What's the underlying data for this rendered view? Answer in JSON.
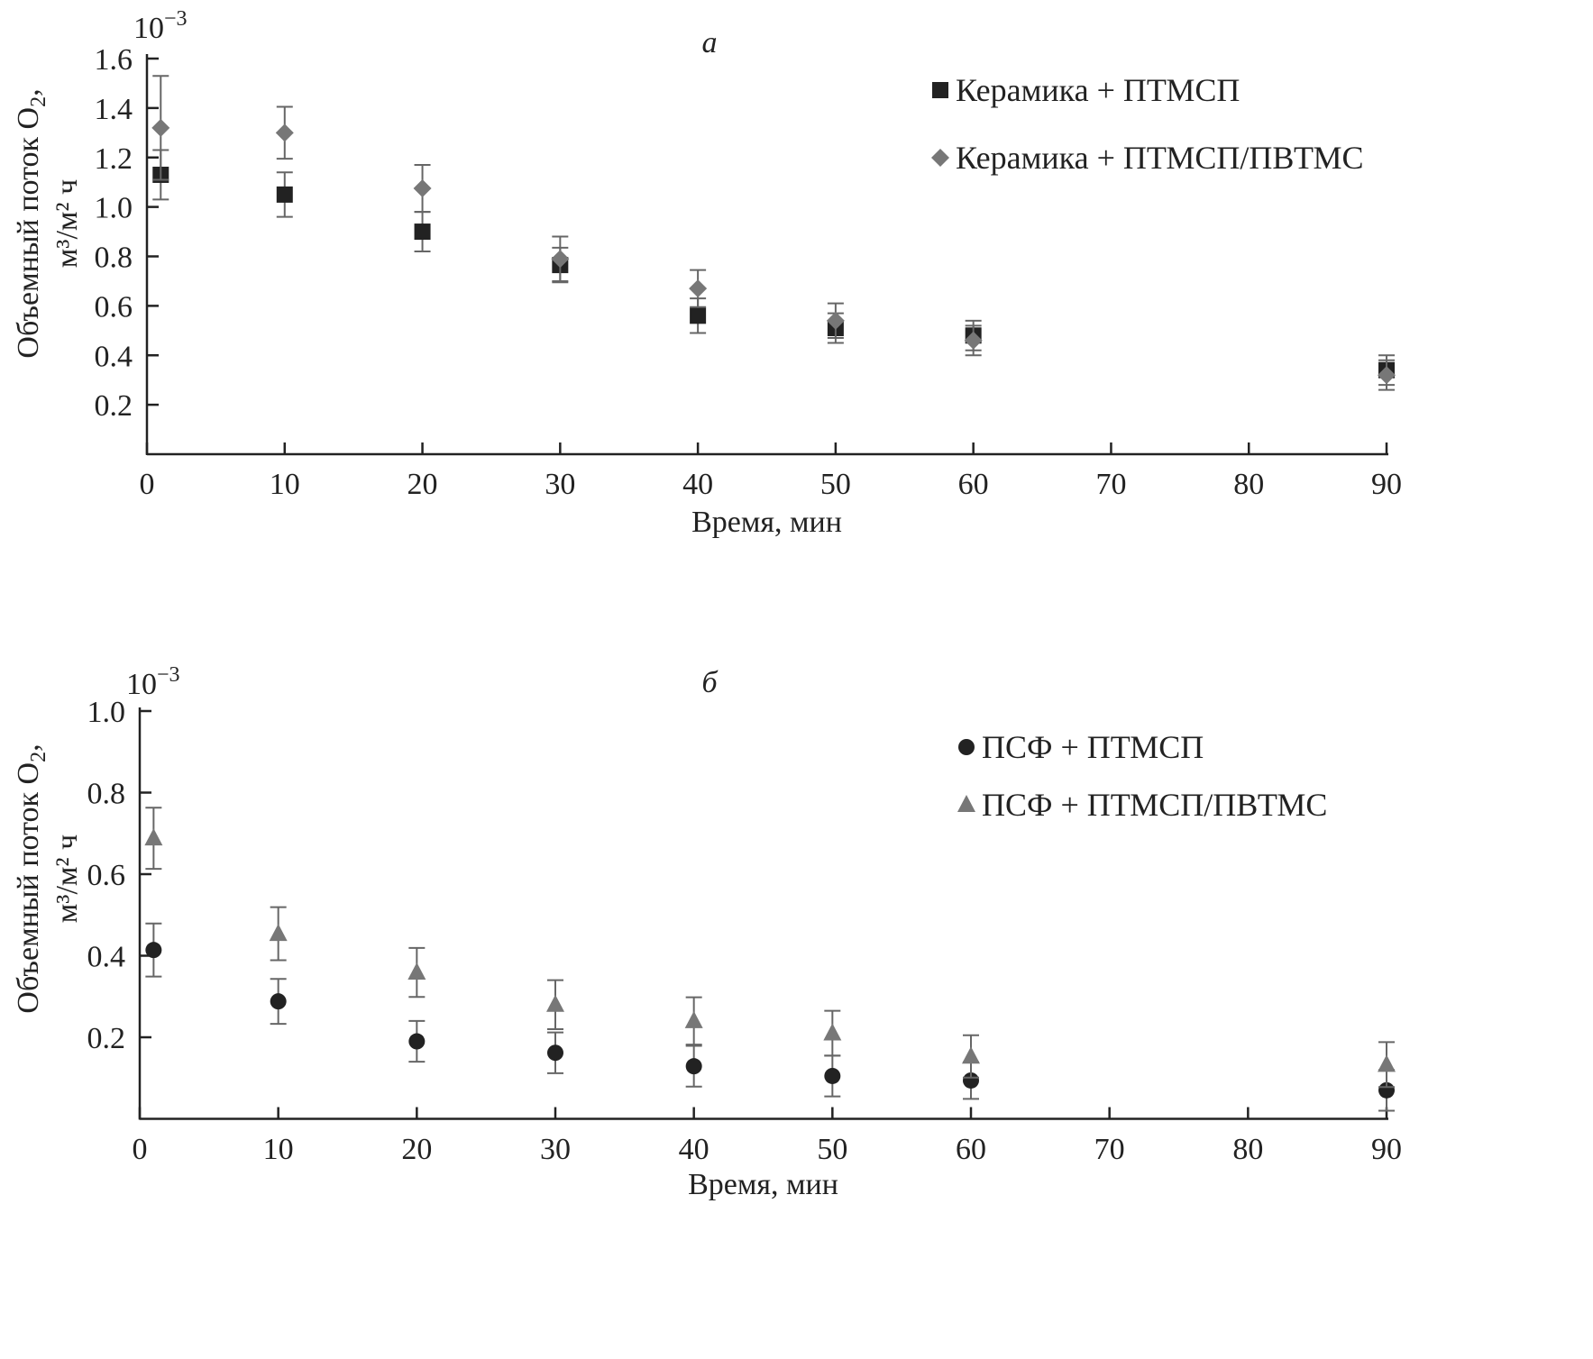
{
  "chart_data": [
    {
      "type": "scatter",
      "panel_label": "а",
      "multiplier": "10",
      "multiplier_exp": "−3",
      "xlabel": "Время, мин",
      "ylabel_line1": "Объемный поток O",
      "ylabel_line1_sub": "2",
      "ylabel_line1_end": ",",
      "ylabel_line2": "м³/м² ч",
      "xlim": [
        0,
        90
      ],
      "ylim": [
        0,
        1.6
      ],
      "xticks": [
        0,
        10,
        20,
        30,
        40,
        50,
        60,
        70,
        80,
        90
      ],
      "yticks": [
        "0.2",
        "0.4",
        "0.6",
        "0.8",
        "1.0",
        "1.2",
        "1.4",
        "1.6"
      ],
      "grid": false,
      "legend_position": "top-right",
      "series": [
        {
          "name": "Керамика + ПТМСП",
          "marker": "square",
          "color": "#222222",
          "x": [
            1,
            10,
            20,
            30,
            40,
            50,
            60,
            90
          ],
          "y": [
            1.13,
            1.05,
            0.9,
            0.765,
            0.56,
            0.51,
            0.48,
            0.34
          ],
          "err": [
            0.1,
            0.09,
            0.08,
            0.07,
            0.07,
            0.06,
            0.06,
            0.06
          ]
        },
        {
          "name": "Керамика + ПТМСП/ПВТМС",
          "marker": "diamond",
          "color": "#777777",
          "x": [
            1,
            10,
            20,
            30,
            40,
            50,
            60,
            90
          ],
          "y": [
            1.32,
            1.3,
            1.075,
            0.79,
            0.67,
            0.54,
            0.46,
            0.32
          ],
          "err": [
            0.21,
            0.105,
            0.095,
            0.09,
            0.075,
            0.07,
            0.06,
            0.06
          ]
        }
      ]
    },
    {
      "type": "scatter",
      "panel_label": "б",
      "multiplier": "10",
      "multiplier_exp": "−3",
      "xlabel": "Время, мин",
      "ylabel_line1": "Объемный поток O",
      "ylabel_line1_sub": "2",
      "ylabel_line1_end": ",",
      "ylabel_line2": "м³/м² ч",
      "xlim": [
        0,
        90
      ],
      "ylim": [
        0,
        1.0
      ],
      "xticks": [
        0,
        10,
        20,
        30,
        40,
        50,
        60,
        70,
        80,
        90
      ],
      "yticks": [
        "0.2",
        "0.4",
        "0.6",
        "0.8",
        "1.0"
      ],
      "grid": false,
      "legend_position": "top-right",
      "series": [
        {
          "name": "ПСФ + ПТМСП",
          "marker": "circle",
          "color": "#222222",
          "x": [
            1,
            10,
            20,
            30,
            40,
            50,
            60,
            90
          ],
          "y": [
            0.414,
            0.288,
            0.19,
            0.162,
            0.129,
            0.105,
            0.094,
            0.07
          ],
          "err": [
            0.065,
            0.055,
            0.05,
            0.05,
            0.05,
            0.05,
            0.045,
            0.05
          ]
        },
        {
          "name": "ПСФ + ПТМСП/ПВТМС",
          "marker": "triangle",
          "color": "#777777",
          "x": [
            1,
            10,
            20,
            30,
            40,
            50,
            60,
            90
          ],
          "y": [
            0.688,
            0.454,
            0.359,
            0.28,
            0.24,
            0.21,
            0.153,
            0.133
          ],
          "err": [
            0.075,
            0.065,
            0.06,
            0.06,
            0.058,
            0.055,
            0.052,
            0.055
          ]
        }
      ]
    }
  ]
}
